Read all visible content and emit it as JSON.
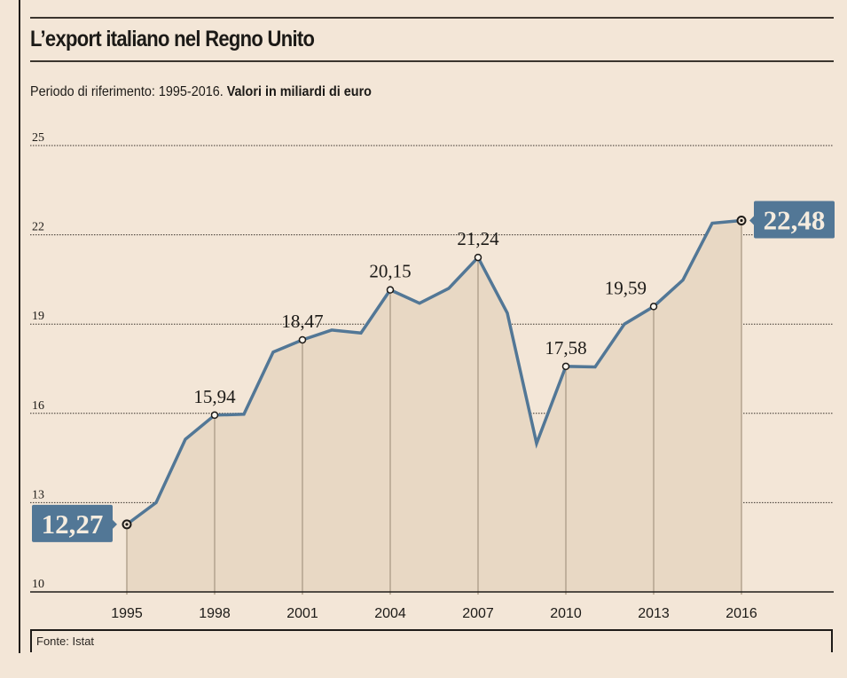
{
  "header": {
    "title": "L’export italiano nel Regno Unito",
    "subtitle_regular": "Periodo di riferimento: 1995-2016.",
    "subtitle_bold": "Valori in miliardi di euro"
  },
  "footer": {
    "source": "Fonte: Istat"
  },
  "colors": {
    "background": "#f3e6d7",
    "line": "#527796",
    "area_fill": "#e8d8c4",
    "callout_bg": "#527796",
    "callout_text": "#f5ecdf",
    "drop_line": "#b3a38e",
    "text": "#1c1a17"
  },
  "chart_data": {
    "type": "area",
    "title": "L’export italiano nel Regno Unito",
    "subtitle": "Periodo di riferimento: 1995-2016. Valori in miliardi di euro",
    "xlabel": "",
    "ylabel": "",
    "x": [
      1995,
      1996,
      1997,
      1998,
      1999,
      2000,
      2001,
      2002,
      2003,
      2004,
      2005,
      2006,
      2007,
      2008,
      2009,
      2010,
      2011,
      2012,
      2013,
      2014,
      2015,
      2016
    ],
    "values": [
      12.27,
      13.0,
      15.13,
      15.94,
      15.97,
      18.06,
      18.47,
      18.8,
      18.7,
      20.15,
      19.7,
      20.2,
      21.24,
      19.37,
      14.99,
      17.58,
      17.56,
      19.0,
      19.59,
      20.48,
      22.39,
      22.48
    ],
    "ylim": [
      10,
      25
    ],
    "yticks": [
      10,
      13,
      16,
      19,
      22,
      25
    ],
    "ytick_labels": [
      "10",
      "13",
      "16",
      "19",
      "22",
      "25"
    ],
    "xticks": [
      1995,
      1998,
      2001,
      2004,
      2007,
      2010,
      2013,
      2016
    ],
    "xtick_labels": [
      "1995",
      "1998",
      "2001",
      "2004",
      "2007",
      "2010",
      "2013",
      "2016"
    ],
    "grid": "horizontal-dotted",
    "legend": "none",
    "data_labels": [
      {
        "x": 1995,
        "label": "12,27",
        "style": "callout-left"
      },
      {
        "x": 1998,
        "label": "15,94",
        "style": "plain"
      },
      {
        "x": 2001,
        "label": "18,47",
        "style": "plain"
      },
      {
        "x": 2004,
        "label": "20,15",
        "style": "plain"
      },
      {
        "x": 2007,
        "label": "21,24",
        "style": "plain"
      },
      {
        "x": 2010,
        "label": "17,58",
        "style": "plain"
      },
      {
        "x": 2013,
        "label": "19,59",
        "style": "plain-left"
      },
      {
        "x": 2016,
        "label": "22,48",
        "style": "callout-right"
      }
    ]
  }
}
